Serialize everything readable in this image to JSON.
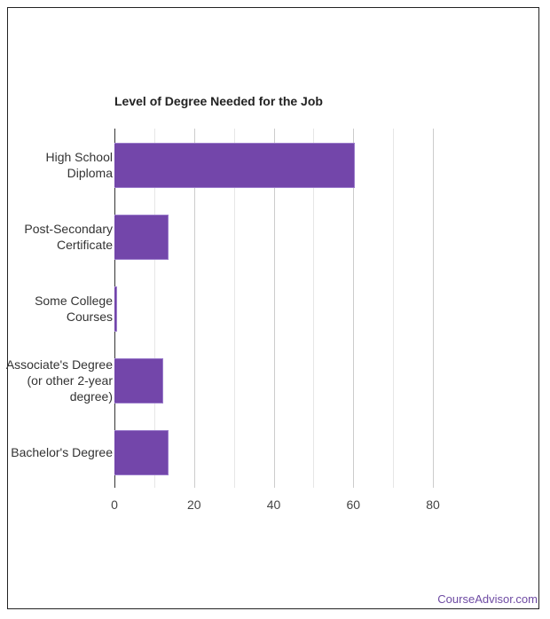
{
  "chart_data": {
    "type": "bar",
    "orientation": "horizontal",
    "title": "Level of Degree Needed for the Job",
    "categories": [
      [
        "High School",
        "Diploma"
      ],
      [
        "Post-Secondary",
        "Certificate"
      ],
      [
        "Some College",
        "Courses"
      ],
      [
        "Associate's Degree",
        "(or other 2-year",
        "degree)"
      ],
      [
        "Bachelor's Degree"
      ]
    ],
    "category_names": [
      "High School Diploma",
      "Post-Secondary Certificate",
      "Some College Courses",
      "Associate's Degree (or other 2-year degree)",
      "Bachelor's Degree"
    ],
    "values": [
      60.4,
      13.5,
      0.7,
      12.3,
      13.5
    ],
    "xlabel": "",
    "ylabel": "",
    "xlim": [
      0,
      80
    ],
    "xticks": [
      "0",
      "20",
      "40",
      "60",
      "80"
    ],
    "grid": true,
    "legend": null,
    "bar_color": "#7346aa"
  },
  "credit": "CourseAdvisor.com"
}
